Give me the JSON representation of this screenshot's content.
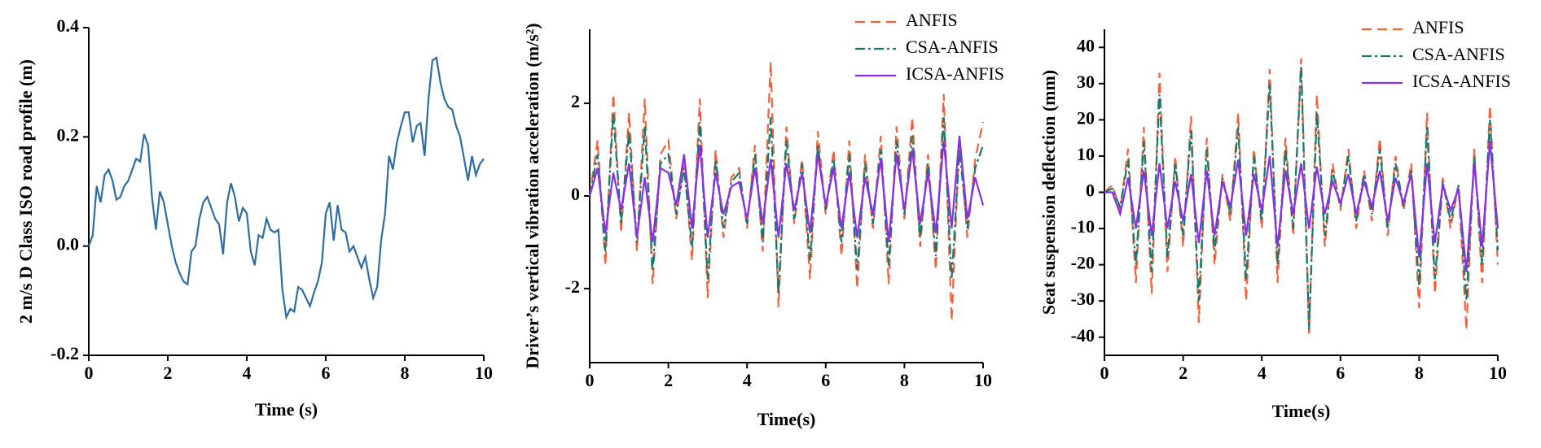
{
  "chart_data": [
    {
      "type": "line",
      "xlabel": "Time (s)",
      "ylabel": "2 m/s D Class ISO road profile (m)",
      "color": "#2e6da4",
      "linestyle": "solid",
      "xlim": [
        0,
        10
      ],
      "ylim": [
        -0.2,
        0.4
      ],
      "xticks": [
        0,
        2,
        4,
        6,
        8,
        10
      ],
      "yticks": [
        -0.2,
        {
          "value": 0,
          "label": "0.0"
        },
        0.2,
        0.4
      ],
      "x": [
        0,
        0.1,
        0.2,
        0.3,
        0.4,
        0.5,
        0.6,
        0.7,
        0.8,
        0.9,
        1,
        1.1,
        1.2,
        1.3,
        1.4,
        1.5,
        1.6,
        1.7,
        1.8,
        1.9,
        2,
        2.1,
        2.2,
        2.3,
        2.4,
        2.5,
        2.6,
        2.7,
        2.8,
        2.9,
        3,
        3.1,
        3.2,
        3.3,
        3.4,
        3.5,
        3.6,
        3.7,
        3.8,
        3.9,
        4,
        4.1,
        4.2,
        4.3,
        4.4,
        4.5,
        4.6,
        4.7,
        4.8,
        4.9,
        5,
        5.1,
        5.2,
        5.3,
        5.4,
        5.5,
        5.6,
        5.7,
        5.8,
        5.9,
        6,
        6.1,
        6.2,
        6.3,
        6.4,
        6.5,
        6.6,
        6.7,
        6.8,
        6.9,
        7,
        7.1,
        7.2,
        7.3,
        7.4,
        7.5,
        7.6,
        7.7,
        7.8,
        7.9,
        8,
        8.1,
        8.2,
        8.3,
        8.4,
        8.5,
        8.6,
        8.7,
        8.8,
        8.9,
        9,
        9.1,
        9.2,
        9.3,
        9.4,
        9.5,
        9.6,
        9.7,
        9.8,
        9.9,
        10
      ],
      "values": [
        0,
        0.02,
        0.11,
        0.08,
        0.13,
        0.14,
        0.12,
        0.085,
        0.09,
        0.11,
        0.12,
        0.14,
        0.16,
        0.155,
        0.205,
        0.185,
        0.09,
        0.03,
        0.1,
        0.08,
        0.04,
        0,
        -0.03,
        -0.05,
        -0.065,
        -0.07,
        -0.01,
        0,
        0.05,
        0.08,
        0.09,
        0.07,
        0.05,
        0.04,
        -0.015,
        0.08,
        0.115,
        0.09,
        0.045,
        0.07,
        0.06,
        -0.01,
        -0.035,
        0.02,
        0.015,
        0.05,
        0.03,
        0.025,
        0.03,
        -0.08,
        -0.13,
        -0.115,
        -0.12,
        -0.075,
        -0.08,
        -0.095,
        -0.11,
        -0.085,
        -0.065,
        -0.03,
        0.06,
        0.08,
        0.01,
        0.075,
        0.03,
        0.025,
        -0.01,
        0,
        -0.02,
        -0.04,
        -0.02,
        -0.06,
        -0.095,
        -0.075,
        0.01,
        0.06,
        0.165,
        0.14,
        0.19,
        0.22,
        0.245,
        0.245,
        0.19,
        0.22,
        0.225,
        0.165,
        0.27,
        0.34,
        0.345,
        0.3,
        0.27,
        0.255,
        0.25,
        0.22,
        0.2,
        0.16,
        0.12,
        0.165,
        0.13,
        0.15,
        0.16
      ]
    },
    {
      "type": "line",
      "xlabel": "Time(s)",
      "ylabel": "Driver’s vertical vibration acceleration (m/s²)",
      "legend": "upper right",
      "xlim": [
        0,
        10
      ],
      "ylim": [
        -3.6,
        3.6
      ],
      "xticks": [
        0,
        2,
        4,
        6,
        8,
        10
      ],
      "yticks": [
        -2,
        0,
        2
      ],
      "x": [
        0,
        0.2,
        0.4,
        0.6,
        0.8,
        1,
        1.2,
        1.4,
        1.6,
        1.8,
        2,
        2.2,
        2.4,
        2.6,
        2.8,
        3,
        3.2,
        3.4,
        3.6,
        3.8,
        4,
        4.2,
        4.4,
        4.6,
        4.8,
        5,
        5.2,
        5.4,
        5.6,
        5.8,
        6,
        6.2,
        6.4,
        6.6,
        6.8,
        7,
        7.2,
        7.4,
        7.6,
        7.8,
        8,
        8.2,
        8.4,
        8.6,
        8.8,
        9,
        9.2,
        9.4,
        9.6,
        9.8,
        10
      ],
      "series": [
        {
          "name": "ANFIS",
          "color": "#f4603c",
          "linestyle": "dashed",
          "values": [
            0,
            1.2,
            -1.5,
            2.2,
            -0.8,
            1.8,
            -1.2,
            2.1,
            -1.9,
            0.9,
            1.2,
            -0.5,
            0.8,
            -1.4,
            2.1,
            -2.2,
            1.0,
            -0.9,
            0.4,
            0.6,
            -0.7,
            1.1,
            -1.2,
            2.9,
            -2.4,
            1.5,
            -0.6,
            0.8,
            -1.8,
            1.4,
            -0.4,
            1.0,
            -1.3,
            1.2,
            -2.0,
            0.9,
            -0.7,
            1.3,
            -1.9,
            1.5,
            -0.5,
            1.7,
            -1.1,
            0.9,
            -1.6,
            2.2,
            -2.7,
            1.3,
            -0.9,
            0.8,
            1.6
          ]
        },
        {
          "name": "CSA-ANFIS",
          "color": "#137a6e",
          "linestyle": "dashdot",
          "values": [
            0,
            0.9,
            -1.2,
            1.8,
            -0.6,
            1.4,
            -1.0,
            1.5,
            -1.6,
            0.7,
            0.9,
            -0.4,
            0.6,
            -1.1,
            1.6,
            -1.8,
            0.8,
            -0.7,
            0.3,
            0.5,
            -0.6,
            0.9,
            -1.0,
            1.7,
            -2.1,
            1.2,
            -0.5,
            0.7,
            -1.4,
            1.1,
            -0.3,
            0.8,
            -1.0,
            0.9,
            -1.6,
            0.7,
            -0.6,
            1.0,
            -1.5,
            1.2,
            -0.4,
            1.3,
            -0.9,
            0.7,
            -1.3,
            1.7,
            -1.8,
            1.0,
            -0.7,
            0.6,
            1.1
          ]
        },
        {
          "name": "ICSA-ANFIS",
          "color": "#8b2ee8",
          "linestyle": "solid",
          "values": [
            0,
            0.6,
            -0.8,
            0.5,
            -0.3,
            0.7,
            -0.9,
            0.4,
            -1.0,
            0.6,
            0.5,
            -0.2,
            0.9,
            -0.7,
            1.1,
            -0.9,
            0.5,
            -0.4,
            0.2,
            0.3,
            -0.5,
            0.6,
            -0.6,
            0.8,
            -0.9,
            0.7,
            -0.3,
            0.5,
            -0.8,
            0.9,
            -0.2,
            0.6,
            -0.7,
            0.5,
            -0.9,
            0.4,
            -0.4,
            0.8,
            -1.0,
            0.9,
            -0.3,
            1.0,
            -0.6,
            0.5,
            -0.8,
            1.2,
            -0.7,
            1.3,
            -0.5,
            0.4,
            -0.2
          ]
        }
      ]
    },
    {
      "type": "line",
      "xlabel": "Time(s)",
      "ylabel": "Seat suspension deflection (mm)",
      "legend": "upper right",
      "xlim": [
        0,
        10
      ],
      "ylim": [
        -45,
        45
      ],
      "xticks": [
        0,
        2,
        4,
        6,
        8,
        10
      ],
      "yticks": [
        -40,
        -30,
        -20,
        -10,
        0,
        10,
        20,
        30,
        40
      ],
      "x": [
        0,
        0.2,
        0.4,
        0.6,
        0.8,
        1,
        1.2,
        1.4,
        1.6,
        1.8,
        2,
        2.2,
        2.4,
        2.6,
        2.8,
        3,
        3.2,
        3.4,
        3.6,
        3.8,
        4,
        4.2,
        4.4,
        4.6,
        4.8,
        5,
        5.2,
        5.4,
        5.6,
        5.8,
        6,
        6.2,
        6.4,
        6.6,
        6.8,
        7,
        7.2,
        7.4,
        7.6,
        7.8,
        8,
        8.2,
        8.4,
        8.6,
        8.8,
        9,
        9.2,
        9.4,
        9.6,
        9.8,
        10
      ],
      "series": [
        {
          "name": "ANFIS",
          "color": "#f4603c",
          "linestyle": "dashed",
          "values": [
            0,
            2,
            -5,
            12,
            -25,
            18,
            -28,
            33,
            -22,
            10,
            -15,
            21,
            -36,
            15,
            -20,
            5,
            -8,
            22,
            -30,
            12,
            -10,
            34,
            -25,
            15,
            -12,
            37,
            -39,
            27,
            -15,
            8,
            -5,
            12,
            -10,
            6,
            -8,
            15,
            -12,
            10,
            -5,
            8,
            -32,
            22,
            -28,
            4,
            -10,
            2,
            -38,
            12,
            -25,
            24,
            -20
          ]
        },
        {
          "name": "CSA-ANFIS",
          "color": "#137a6e",
          "linestyle": "dashdot",
          "values": [
            0,
            1,
            -4,
            9,
            -20,
            14,
            -22,
            27,
            -18,
            8,
            -12,
            17,
            -30,
            12,
            -16,
            4,
            -6,
            18,
            -24,
            10,
            -8,
            30,
            -20,
            12,
            -10,
            35,
            -38,
            22,
            -12,
            6,
            -4,
            10,
            -8,
            5,
            -6,
            12,
            -10,
            8,
            -4,
            6,
            -26,
            18,
            -24,
            3,
            -8,
            2,
            -30,
            10,
            -20,
            20,
            -16
          ]
        },
        {
          "name": "ICSA-ANFIS",
          "color": "#8b2ee8",
          "linestyle": "solid",
          "values": [
            0,
            0,
            -6,
            4,
            -10,
            6,
            -12,
            8,
            -10,
            3,
            -8,
            5,
            -14,
            6,
            -12,
            3,
            -4,
            9,
            -12,
            5,
            -5,
            10,
            -15,
            6,
            -6,
            8,
            -10,
            7,
            -6,
            3,
            -3,
            5,
            -6,
            3,
            -4,
            6,
            -8,
            4,
            -3,
            5,
            -18,
            8,
            -14,
            2,
            -5,
            1,
            -22,
            8,
            -15,
            14,
            -10
          ]
        }
      ]
    }
  ]
}
